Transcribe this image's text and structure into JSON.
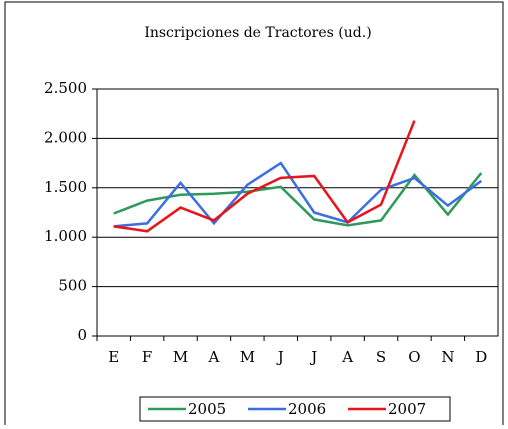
{
  "chart_data": {
    "type": "line",
    "title": "Inscripciones de Tractores (ud.)",
    "categories": [
      "E",
      "F",
      "M",
      "A",
      "M",
      "J",
      "J",
      "A",
      "S",
      "O",
      "N",
      "D"
    ],
    "series": [
      {
        "name": "2005",
        "color": "#2e9a5a",
        "values": [
          1240,
          1370,
          1430,
          1440,
          1460,
          1510,
          1180,
          1120,
          1170,
          1630,
          1230,
          1650
        ]
      },
      {
        "name": "2006",
        "color": "#3b6fe0",
        "values": [
          1110,
          1140,
          1550,
          1140,
          1530,
          1750,
          1250,
          1150,
          1480,
          1600,
          1320,
          1570
        ]
      },
      {
        "name": "2007",
        "color": "#e8141b",
        "values": [
          1110,
          1060,
          1300,
          1170,
          1440,
          1600,
          1620,
          1150,
          1330,
          2180,
          null,
          null
        ]
      }
    ],
    "ylim": [
      0,
      2500
    ],
    "yticks": [
      0,
      500,
      {
        "value": 1000,
        "label": "1.000"
      },
      {
        "value": 1500,
        "label": "1.500"
      },
      {
        "value": 2000,
        "label": "2.000"
      },
      {
        "value": 2500,
        "label": "2.500"
      }
    ],
    "grid": true,
    "legend": "bottom"
  }
}
